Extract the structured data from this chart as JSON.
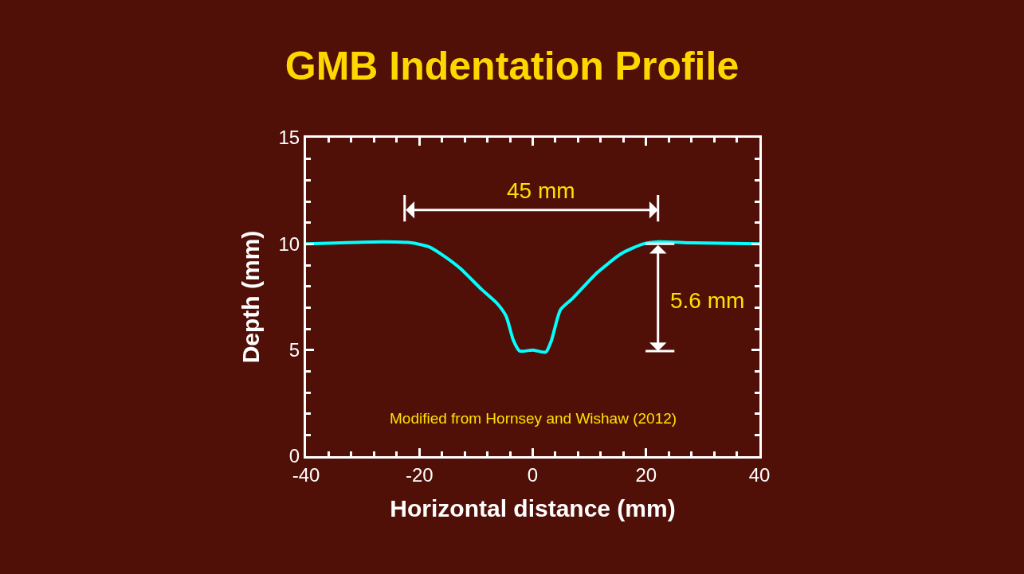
{
  "chart_data": {
    "type": "line",
    "title": "GMB Indentation Profile",
    "xlabel": "Horizontal distance (mm)",
    "ylabel": "Depth (mm)",
    "xlim": [
      -40,
      40
    ],
    "ylim": [
      0,
      15
    ],
    "xticks": [
      -40,
      {
        "value": -36,
        "label": null
      },
      {
        "value": -32,
        "label": null
      },
      {
        "value": -28,
        "label": null
      },
      {
        "value": -24,
        "label": null
      },
      -20,
      {
        "value": -16,
        "label": null
      },
      {
        "value": -12,
        "label": null
      },
      {
        "value": -8,
        "label": null
      },
      {
        "value": -4,
        "label": null
      },
      0,
      {
        "value": 4,
        "label": null
      },
      {
        "value": 8,
        "label": null
      },
      {
        "value": 12,
        "label": null
      },
      {
        "value": 16,
        "label": null
      },
      20,
      {
        "value": 24,
        "label": null
      },
      {
        "value": 28,
        "label": null
      },
      {
        "value": 32,
        "label": null
      },
      {
        "value": 36,
        "label": null
      },
      40
    ],
    "yticks": [
      0,
      {
        "value": 1,
        "label": null
      },
      {
        "value": 2,
        "label": null
      },
      {
        "value": 3,
        "label": null
      },
      {
        "value": 4,
        "label": null
      },
      5,
      {
        "value": 6,
        "label": null
      },
      {
        "value": 7,
        "label": null
      },
      {
        "value": 8,
        "label": null
      },
      {
        "value": 9,
        "label": null
      },
      10,
      {
        "value": 11,
        "label": null
      },
      {
        "value": 12,
        "label": null
      },
      {
        "value": 13,
        "label": null
      },
      {
        "value": 14,
        "label": null
      },
      15
    ],
    "grid": false,
    "marker": "none",
    "line_style": "solid",
    "series": [
      {
        "color": "#00ffff",
        "x": [
          -40,
          -26.3,
          -21.4,
          -18.2,
          -15.5,
          -12.8,
          -9.0,
          -6.3,
          -4.7,
          -3.4,
          -2.3,
          0,
          2.3,
          3.3,
          4.9,
          7.1,
          11.4,
          15.7,
          19.5,
          22.2,
          28.1,
          40
        ],
        "values": [
          10.0,
          10.1,
          10.05,
          9.85,
          9.4,
          8.85,
          7.85,
          7.2,
          6.6,
          5.45,
          4.95,
          5.0,
          4.9,
          5.45,
          6.9,
          7.45,
          8.65,
          9.55,
          10.0,
          10.1,
          10.05,
          10.0
        ]
      }
    ],
    "annotations": [
      "45 mm",
      "5.6 mm",
      "Modified from Hornsey and Wishaw (2012)"
    ]
  }
}
